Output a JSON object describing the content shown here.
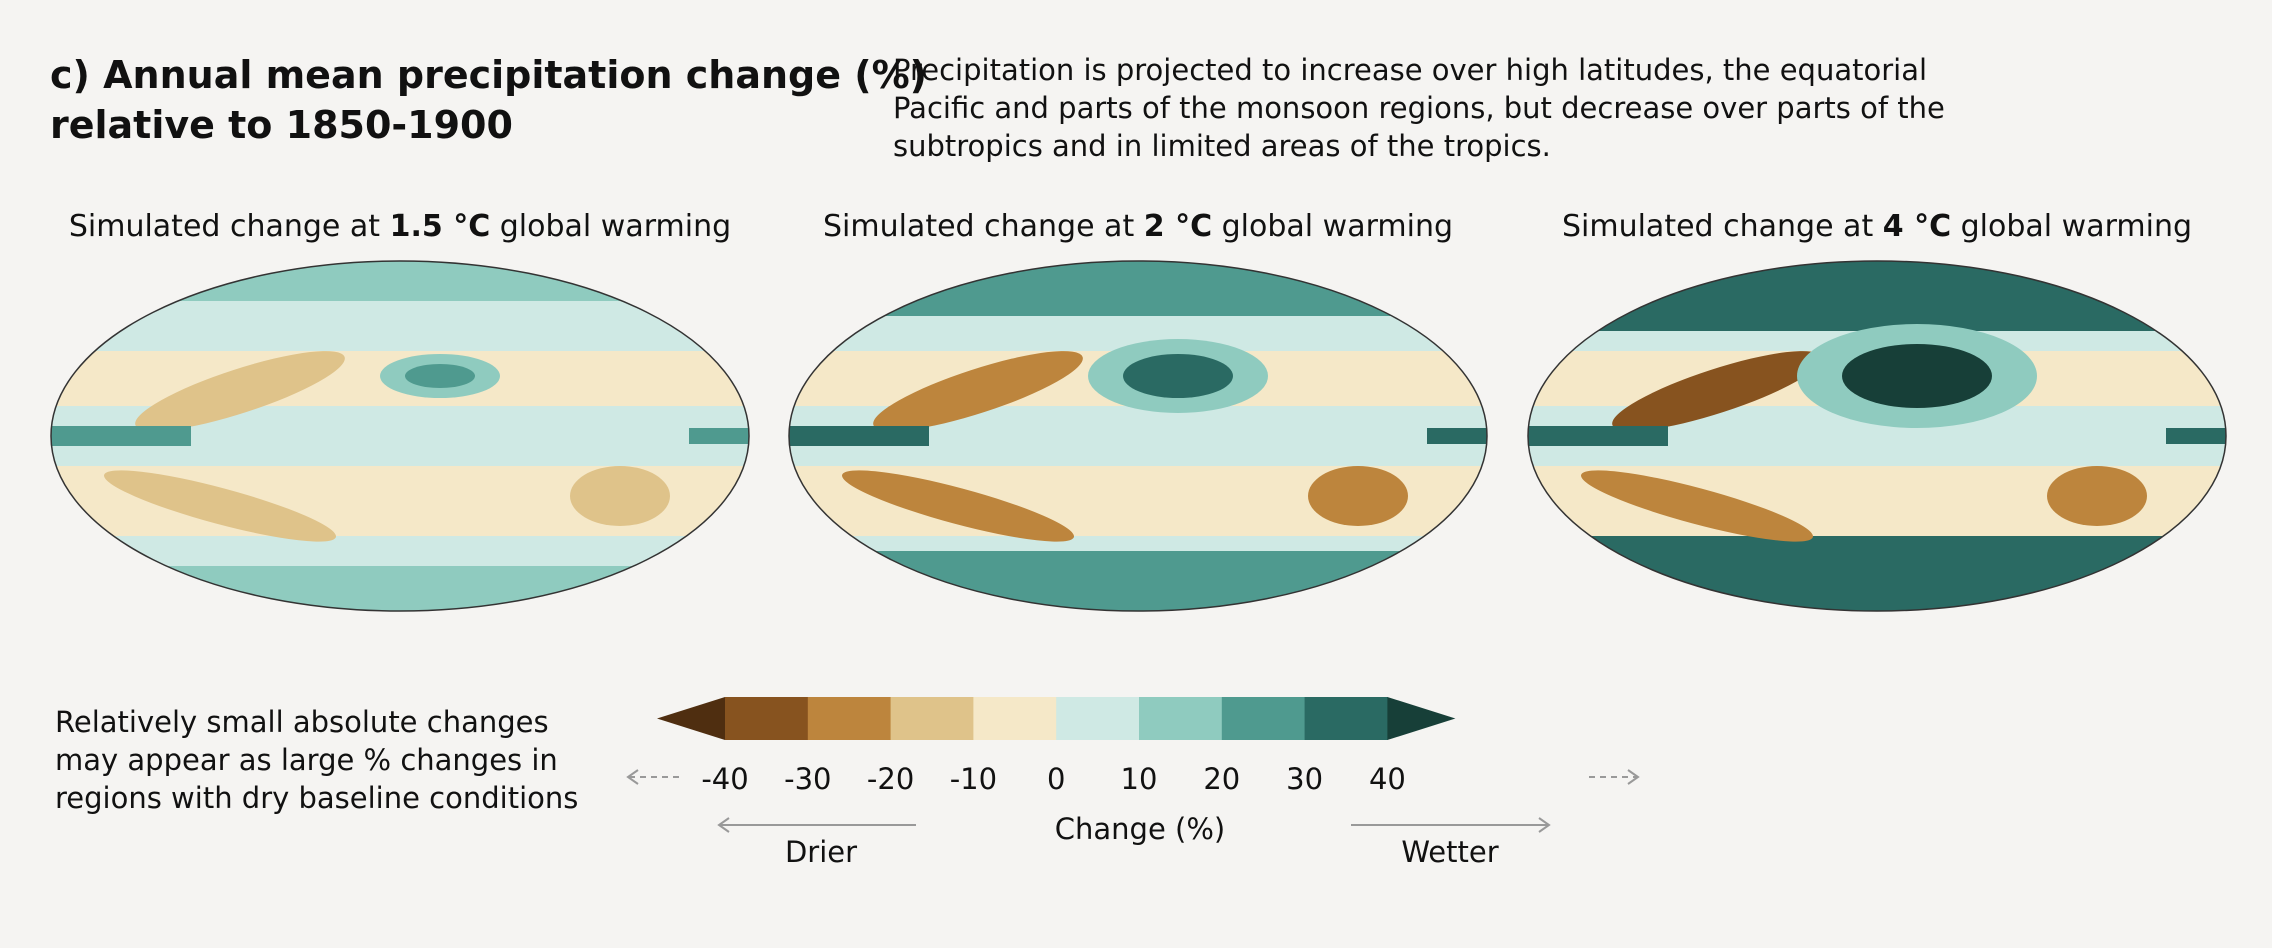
{
  "title": [
    "c) Annual mean precipitation change (%)",
    "relative to 1850-1900"
  ],
  "description": [
    "Precipitation is projected to increase over high latitudes, the equatorial",
    "Pacific and parts of the monsoon regions, but decrease over parts of the",
    "subtropics and in limited areas of the tropics."
  ],
  "maps": [
    {
      "title_prefix": "Simulated change at ",
      "title_bold": "1.5 °C",
      "title_suffix": " global warming"
    },
    {
      "title_prefix": "Simulated change at ",
      "title_bold": "2 °C",
      "title_suffix": " global warming"
    },
    {
      "title_prefix": "Simulated change at ",
      "title_bold": "4 °C",
      "title_suffix": " global warming"
    }
  ],
  "colorbar": {
    "label": "Change (%)",
    "ticks": [
      -40,
      -30,
      -20,
      -10,
      0,
      10,
      20,
      30,
      40
    ],
    "colors": [
      "#4f2e10",
      "#87531f",
      "#bd853d",
      "#dfc38a",
      "#f5e8c8",
      "#cfe9e4",
      "#8fcbbf",
      "#4f9a8f",
      "#2a6a63",
      "#173f38"
    ],
    "drier": "Drier",
    "wetter": "Wetter"
  },
  "note": [
    "Relatively small absolute changes",
    "may appear as large % changes in",
    "regions with dry baseline conditions"
  ]
}
